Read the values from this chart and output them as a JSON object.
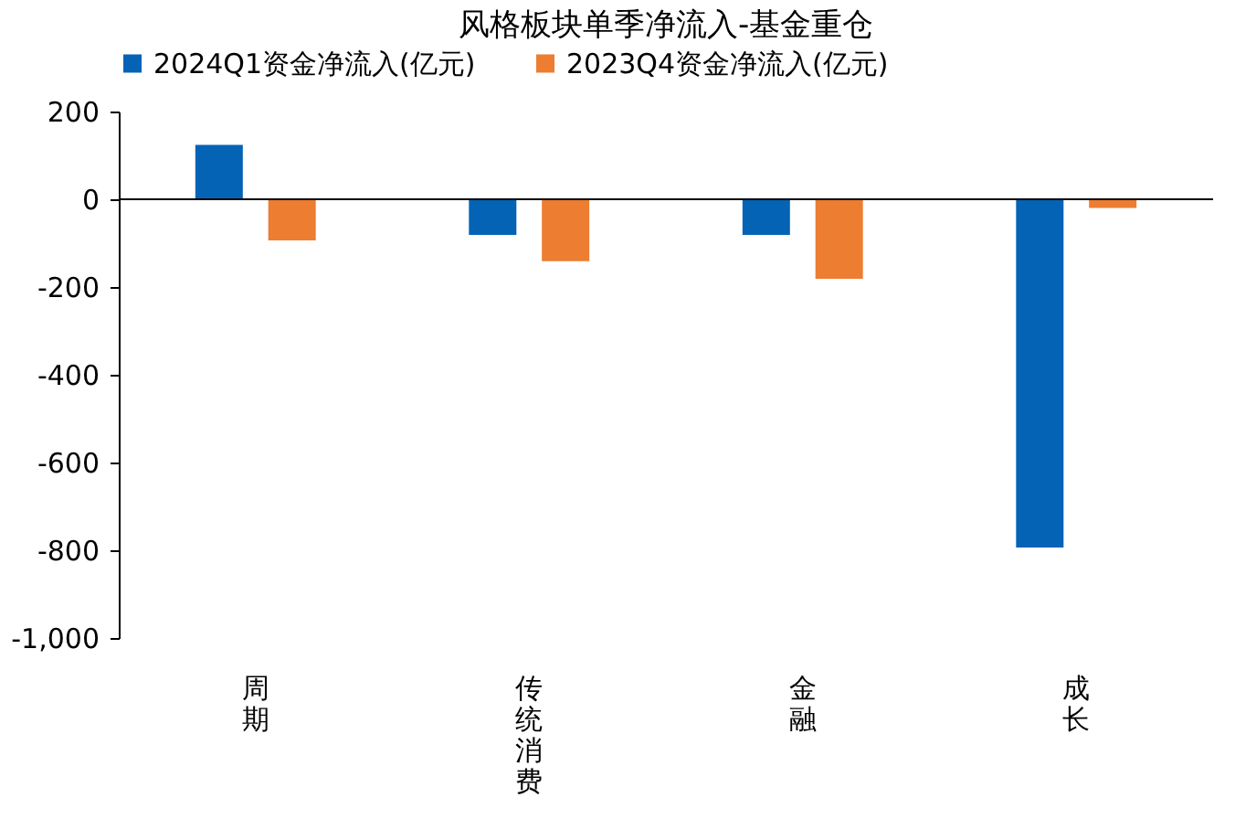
{
  "chart_data": {
    "type": "bar",
    "title": "风格板块单季净流入-基金重仓",
    "categories": [
      "周期",
      "传统消费",
      "金融",
      "成长"
    ],
    "series": [
      {
        "name": "2024Q1资金净流入(亿元)",
        "color": "#0563b6",
        "values": [
          124,
          -81,
          -81,
          -794
        ]
      },
      {
        "name": "2023Q4资金净流入(亿元)",
        "color": "#ed7d31",
        "values": [
          -94,
          -141,
          -181,
          -20
        ]
      }
    ],
    "ylim": [
      -1000,
      200
    ],
    "yticks": [
      {
        "value": -1000,
        "label": "-1,000"
      },
      {
        "value": -800,
        "label": "-800"
      },
      {
        "value": -600,
        "label": "-600"
      },
      {
        "value": -400,
        "label": "-400"
      },
      {
        "value": -200,
        "label": "-200"
      },
      {
        "value": 0,
        "label": "0"
      },
      {
        "value": 200,
        "label": "200"
      }
    ],
    "ref_lines": [
      {
        "axis": "y",
        "value": 0,
        "color": "#000000"
      }
    ],
    "legend": "top"
  }
}
